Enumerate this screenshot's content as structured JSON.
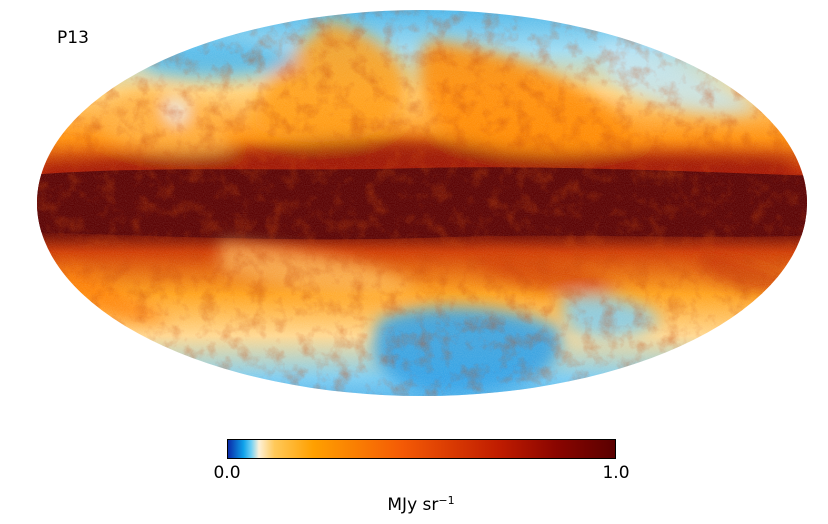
{
  "map": {
    "label": "P13",
    "projection": "mollweide",
    "colormap": [
      "#0a2aa8",
      "#0ea2ea",
      "#6fd0f5",
      "#fdf1d8",
      "#ffc95a",
      "#ffa000",
      "#f45a05",
      "#c01c00",
      "#8a0500",
      "#5a0000"
    ]
  },
  "colorbar": {
    "min_label": "0.0",
    "max_label": "1.0",
    "unit_base": "MJy sr",
    "unit_exponent": "−1",
    "min": 0.0,
    "max": 1.0
  }
}
